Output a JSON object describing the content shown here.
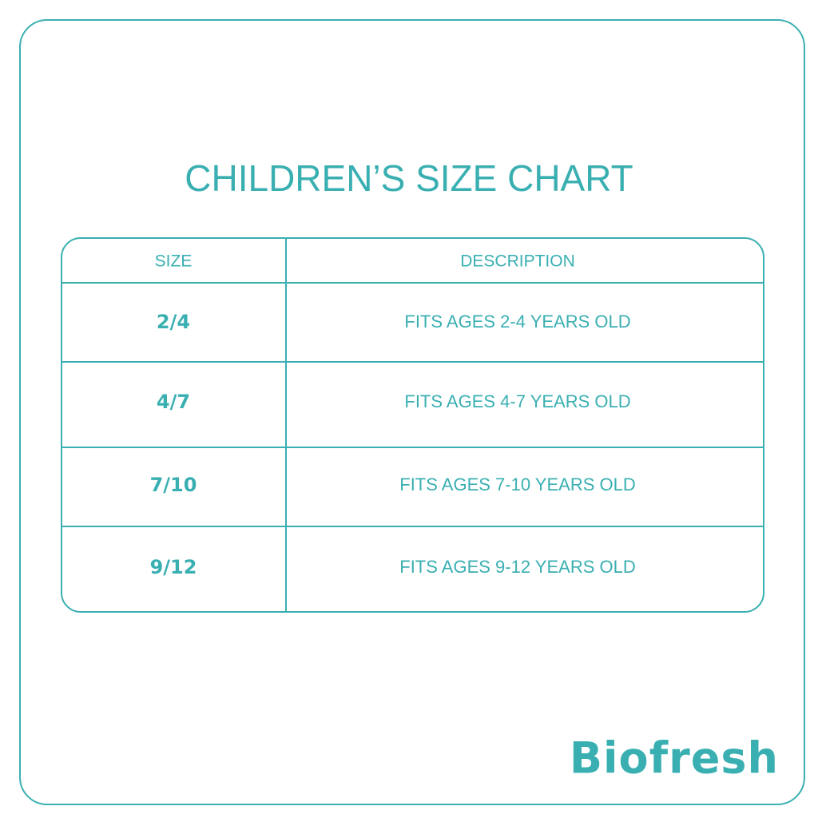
{
  "header": {
    "title": "CHILDREN’S SIZE CHART"
  },
  "table": {
    "columns": [
      "SIZE",
      "DESCRIPTION"
    ],
    "rows": [
      [
        "2/4",
        "FITS AGES 2-4 YEARS OLD"
      ],
      [
        "4/7",
        "FITS AGES 4-7 YEARS OLD"
      ],
      [
        "7/10",
        "FITS AGES 7-10 YEARS OLD"
      ],
      [
        "9/12",
        "FITS AGES 9-12 YEARS OLD"
      ]
    ]
  },
  "footer": {
    "brand": "Biofresh"
  }
}
